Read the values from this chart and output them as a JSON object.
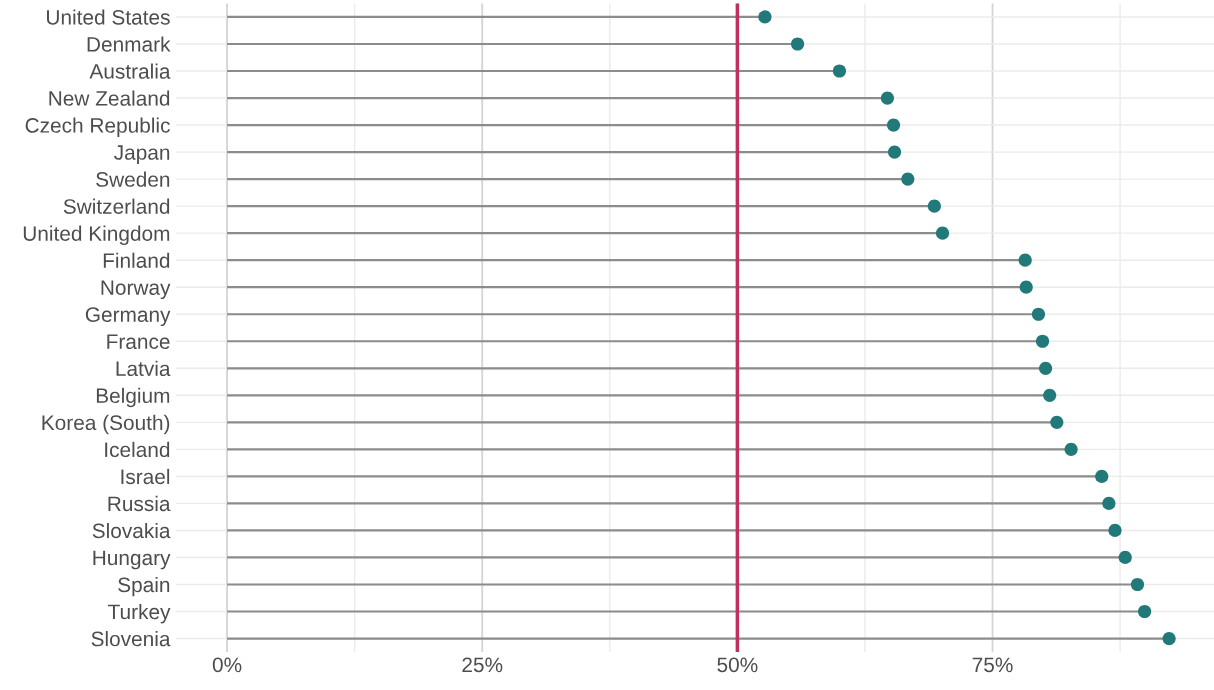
{
  "chart_data": {
    "type": "lollipop",
    "orientation": "horizontal",
    "categories": [
      "United States",
      "Denmark",
      "Australia",
      "New Zealand",
      "Czech Republic",
      "Japan",
      "Sweden",
      "Switzerland",
      "United Kingdom",
      "Finland",
      "Norway",
      "Germany",
      "France",
      "Latvia",
      "Belgium",
      "Korea (South)",
      "Iceland",
      "Israel",
      "Russia",
      "Slovakia",
      "Hungary",
      "Spain",
      "Turkey",
      "Slovenia"
    ],
    "series": [
      {
        "color": "#217a79",
        "values": [
          52.7,
          55.9,
          60.0,
          64.7,
          65.3,
          65.4,
          66.7,
          69.3,
          70.1,
          78.2,
          78.3,
          79.5,
          79.9,
          80.2,
          80.6,
          81.3,
          82.7,
          85.7,
          86.4,
          87.0,
          88.0,
          89.2,
          89.9,
          92.3
        ]
      }
    ],
    "xlim": [
      -5,
      96.7
    ],
    "xticks": [
      {
        "value": 0,
        "label": "0%"
      },
      {
        "value": 12.5,
        "label": null
      },
      {
        "value": 25,
        "label": "25%"
      },
      {
        "value": 37.5,
        "label": null
      },
      {
        "value": 50,
        "label": "50%"
      },
      {
        "value": 62.5,
        "label": null
      },
      {
        "value": 75,
        "label": "75%"
      },
      {
        "value": 87.5,
        "label": null
      }
    ],
    "ref_lines": [
      {
        "axis": "x",
        "value": 50,
        "color": "#c0305a"
      }
    ],
    "grid": true,
    "marker": "circle"
  }
}
